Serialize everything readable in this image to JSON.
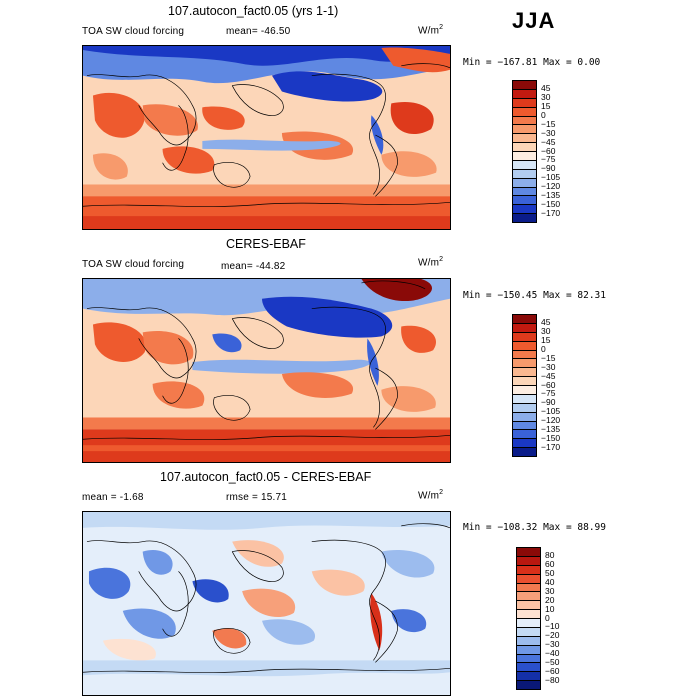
{
  "season": "JJA",
  "panels": [
    {
      "title": "107.autocon_fact0.05 (yrs 1-1)",
      "left_label": "TOA SW cloud forcing",
      "mean_label": "mean= -46.50",
      "rmse_label": "",
      "units": "W/m",
      "units_exp": "2",
      "minmax": "Min = −167.81 Max =    0.00",
      "levels": [
        "45",
        "30",
        "15",
        "0",
        "−15",
        "−30",
        "−45",
        "−60",
        "−75",
        "−90",
        "−105",
        "−120",
        "−135",
        "−150",
        "−170"
      ],
      "colors": [
        "#8a0a08",
        "#c21a10",
        "#de3a1c",
        "#ee5a2e",
        "#f37a4c",
        "#f79a6c",
        "#fab890",
        "#fcd6b8",
        "#fdeee2",
        "#d6e6f7",
        "#b2cdf0",
        "#8caeea",
        "#5f88e2",
        "#3a62d8",
        "#1a38c4",
        "#0a1c8a"
      ]
    },
    {
      "title": "CERES-EBAF",
      "left_label": "TOA SW cloud forcing",
      "mean_label": "mean= -44.82",
      "rmse_label": "",
      "units": "W/m",
      "units_exp": "2",
      "minmax": "Min = −150.45 Max =  82.31",
      "levels": [
        "45",
        "30",
        "15",
        "0",
        "−15",
        "−30",
        "−45",
        "−60",
        "−75",
        "−90",
        "−105",
        "−120",
        "−135",
        "−150",
        "−170"
      ],
      "colors": [
        "#8a0a08",
        "#c21a10",
        "#de3a1c",
        "#ee5a2e",
        "#f37a4c",
        "#f79a6c",
        "#fab890",
        "#fcd6b8",
        "#fdeee2",
        "#d6e6f7",
        "#b2cdf0",
        "#8caeea",
        "#5f88e2",
        "#3a62d8",
        "#1a38c4",
        "#0a1c8a"
      ]
    },
    {
      "title": "107.autocon_fact0.05 - CERES-EBAF",
      "left_label": "",
      "mean_label": "mean =   -1.68",
      "rmse_label": "rmse =  15.71",
      "units": "W/m",
      "units_exp": "2",
      "minmax": "Min = −108.32 Max =  88.99",
      "levels": [
        "80",
        "60",
        "50",
        "40",
        "30",
        "20",
        "10",
        "0",
        "−10",
        "−20",
        "−30",
        "−40",
        "−50",
        "−60",
        "−80"
      ],
      "colors": [
        "#8a0a08",
        "#b81810",
        "#d8301a",
        "#ea5030",
        "#f27a50",
        "#f7a07a",
        "#fbc2a4",
        "#fde2d2",
        "#e4eefa",
        "#c4daf4",
        "#9cbcee",
        "#7098e6",
        "#4a74dc",
        "#2a50cc",
        "#1430a8",
        "#0a1876"
      ]
    }
  ]
}
